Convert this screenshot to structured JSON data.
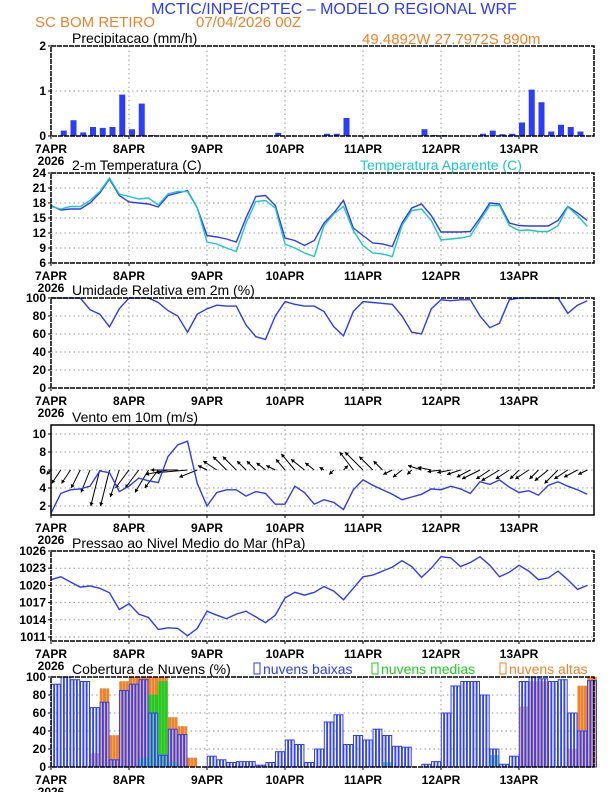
{
  "header": {
    "title": "MCTIC/INPE/CPTEC – MODELO REGIONAL WRF",
    "location": "SC BOM RETIRO",
    "run": "07/04/2026 00Z",
    "coords": "49.4892W 27.7972S 890m",
    "title_color": "#2b3cff",
    "accent_color": "#f0832a"
  },
  "x_axis": {
    "ticks": [
      "7APR",
      "8APR",
      "9APR",
      "10APR",
      "11APR",
      "12APR",
      "13APR"
    ],
    "year": "2026",
    "x_start": "07APR2026 00Z",
    "x_step_hours": 3
  },
  "chart_data": [
    {
      "type": "bar",
      "title": "Precipitacao (mm/h)",
      "ylim": [
        0,
        2
      ],
      "yticks": [
        "0",
        "1",
        "2"
      ],
      "grid": true,
      "series": [
        {
          "color": "#2b3cff",
          "values": [
            0,
            0.12,
            0.35,
            0.08,
            0.2,
            0.18,
            0.2,
            0.92,
            0.15,
            0.72,
            0.02,
            0.01,
            0,
            0,
            0,
            0,
            0,
            0,
            0,
            0,
            0,
            0,
            0,
            0.07,
            0,
            0,
            0,
            0,
            0.05,
            0.05,
            0.4,
            0,
            0,
            0,
            0,
            0,
            0,
            0.01,
            0.15,
            0.02,
            0.02,
            0,
            0.01,
            0.01,
            0.05,
            0.12,
            0.04,
            0.05,
            0.3,
            1.03,
            0.75,
            0.1,
            0.25,
            0.2,
            0.1,
            0.01
          ]
        }
      ]
    },
    {
      "type": "line",
      "title": "2-m Temperatura (C)",
      "ylim": [
        6,
        24
      ],
      "yticks": [
        "6",
        "9",
        "12",
        "15",
        "18",
        "21",
        "24"
      ],
      "grid": true,
      "series": [
        {
          "color": "#2b3cff",
          "values": [
            17.5,
            16.6,
            16.8,
            16.8,
            18.0,
            20.0,
            22.8,
            19.5,
            18.2,
            18.0,
            17.8,
            17.2,
            19.5,
            20.0,
            20.5,
            17.0,
            11.5,
            11.2,
            10.8,
            10.2,
            15.0,
            19.3,
            19.5,
            17.5,
            11.0,
            10.5,
            9.5,
            10.5,
            14.0,
            16.0,
            18.5,
            13.0,
            11.5,
            10.0,
            9.8,
            9.3,
            14.0,
            17.0,
            17.8,
            15.5,
            12.2,
            12.2,
            12.2,
            12.3,
            15.0,
            18.0,
            17.8,
            14.0,
            13.5,
            13.4,
            13.4,
            13.4,
            14.5,
            17.3,
            16.0,
            14.5
          ]
        },
        {
          "name": "Temperatura Aparente (C)",
          "color": "#19c8c8",
          "values": [
            17.3,
            16.8,
            17.3,
            17.3,
            18.5,
            20.3,
            23.0,
            19.8,
            19.3,
            18.8,
            19.0,
            17.6,
            19.8,
            20.3,
            20.3,
            17.0,
            10.2,
            9.8,
            9.0,
            8.3,
            14.0,
            18.3,
            18.5,
            17.0,
            9.8,
            9.0,
            8.0,
            7.3,
            13.5,
            15.8,
            17.3,
            12.5,
            9.5,
            8.0,
            7.8,
            7.3,
            13.5,
            16.5,
            16.8,
            14.5,
            10.6,
            10.8,
            11.0,
            11.4,
            14.5,
            17.5,
            17.5,
            13.5,
            12.5,
            12.6,
            12.3,
            12.3,
            13.5,
            17.2,
            15.5,
            13.3
          ]
        }
      ]
    },
    {
      "type": "line",
      "title": "Umidade Relativa em 2m (%)",
      "ylim": [
        0,
        100
      ],
      "yticks": [
        "0",
        "20",
        "40",
        "60",
        "80",
        "100"
      ],
      "grid": true,
      "series": [
        {
          "color": "#2b3cff",
          "values": [
            100,
            100,
            100,
            100,
            87,
            82,
            68,
            88,
            100,
            100,
            100,
            95,
            86,
            80,
            62,
            82,
            88,
            92,
            91,
            91,
            70,
            57,
            54,
            80,
            96,
            93,
            91,
            91,
            85,
            68,
            58,
            85,
            96,
            95,
            94,
            93,
            80,
            62,
            60,
            88,
            98,
            97,
            98,
            98,
            80,
            67,
            72,
            98,
            100,
            100,
            100,
            100,
            100,
            83,
            92,
            97
          ]
        }
      ]
    },
    {
      "type": "line",
      "title": "Vento em 10m (m/s)",
      "ylim": [
        1,
        11
      ],
      "yticks": [
        "2",
        "4",
        "6",
        "8",
        "10"
      ],
      "grid": true,
      "series": [
        {
          "color": "#2b3cff",
          "values": [
            1.2,
            3.4,
            3.8,
            3.9,
            4.2,
            5.9,
            5.7,
            3.6,
            4.2,
            5.1,
            4.8,
            4.6,
            7.5,
            8.8,
            9.2,
            4.5,
            2.0,
            3.5,
            3.8,
            3.8,
            3.1,
            3.6,
            3.4,
            2.2,
            2.2,
            4.2,
            3.5,
            2.2,
            2.7,
            2.4,
            1.6,
            3.8,
            4.9,
            4.3,
            3.8,
            3.3,
            2.7,
            3.0,
            3.3,
            3.9,
            3.8,
            4.2,
            3.9,
            3.4,
            4.7,
            4.4,
            4.9,
            4.1,
            3.5,
            3.7,
            3.2,
            4.3,
            4.7,
            4.2,
            3.8,
            3.3
          ]
        }
      ],
      "vectors": {
        "baseline": 6,
        "u": [
          -1,
          -2,
          -2,
          -2,
          -2,
          -2,
          -2,
          -2,
          -3,
          -3,
          -3,
          -3,
          -5,
          -6,
          -7,
          -4,
          -2,
          -3,
          -3,
          -3,
          -2,
          -2,
          -2,
          -2,
          -2,
          -3,
          -3,
          -2,
          -1,
          -1,
          1,
          -3,
          -4,
          -3,
          -2,
          -2,
          -2,
          -1,
          -3,
          -3,
          -3,
          -3,
          -3,
          -3,
          -4,
          -3,
          -4,
          -3,
          -2,
          -3,
          -2,
          -3,
          -3,
          -3,
          -3,
          -2
        ],
        "v": [
          -0.5,
          -1.5,
          -1.5,
          -2,
          -2.5,
          -4,
          -4,
          -3,
          -2,
          -2,
          -2.5,
          -2,
          -0.5,
          0,
          -0.3,
          -0.8,
          0.5,
          1,
          1.5,
          1.5,
          1,
          1,
          0.8,
          0.5,
          1.2,
          1.8,
          1.2,
          0.8,
          0.3,
          -0.5,
          0.5,
          2,
          2,
          1.5,
          1,
          -0.5,
          -0.8,
          -0.5,
          0.5,
          0.3,
          -0.2,
          -0.3,
          -0.5,
          -0.8,
          -1,
          -1,
          -1.2,
          -1,
          -1,
          -1,
          -1,
          -1.2,
          -1.5,
          -1,
          -0.8,
          -0.5
        ]
      }
    },
    {
      "type": "line",
      "title": "Pressao ao Nivel Medio do Mar (hPa)",
      "ylim": [
        1010.3,
        1026
      ],
      "yticks": [
        "1011",
        "1014",
        "1017",
        "1020",
        "1023",
        "1026"
      ],
      "grid": true,
      "series": [
        {
          "color": "#2b3cff",
          "values": [
            1021,
            1021.5,
            1020.6,
            1019.7,
            1019.9,
            1019.5,
            1018.7,
            1015.8,
            1016.8,
            1015.0,
            1014.4,
            1012.3,
            1012.6,
            1012.5,
            1011.2,
            1012.5,
            1015.5,
            1014.8,
            1014.2,
            1015.0,
            1015.5,
            1014.5,
            1013.5,
            1014.8,
            1017.8,
            1018.8,
            1018.3,
            1018.8,
            1019.8,
            1019.0,
            1017.5,
            1019.5,
            1021.5,
            1021.8,
            1022.5,
            1023.2,
            1024.3,
            1023.3,
            1021.4,
            1023.0,
            1025.0,
            1024.8,
            1023.3,
            1024.0,
            1025.0,
            1023.5,
            1021.5,
            1022.3,
            1023.5,
            1022.5,
            1021.0,
            1021.3,
            1022.5,
            1021.0,
            1019.3,
            1020.0
          ]
        }
      ]
    },
    {
      "type": "bar",
      "title": "Cobertura de Nuvens (%)",
      "ylim": [
        0,
        100
      ],
      "yticks": [
        "0",
        "20",
        "40",
        "60",
        "80",
        "100"
      ],
      "grid": true,
      "legend": "top",
      "series": [
        {
          "name": "nuvens altas",
          "color": "#f0832a",
          "values": [
            0,
            0,
            0,
            0,
            15,
            87,
            35,
            95,
            100,
            100,
            100,
            100,
            55,
            45,
            10,
            0,
            0,
            0,
            0,
            0,
            0,
            0,
            0,
            0,
            0,
            0,
            0,
            0,
            0,
            0,
            0,
            0,
            0,
            0,
            0,
            0,
            0,
            0,
            0,
            0,
            0,
            0,
            0,
            0,
            0,
            0,
            0,
            0,
            67,
            95,
            95,
            0,
            0,
            20,
            90,
            100
          ]
        },
        {
          "name": "nuvens medias",
          "color": "#22cc22",
          "values": [
            0,
            0,
            0,
            0,
            0,
            0,
            0,
            0,
            0,
            10,
            80,
            95,
            5,
            0,
            0,
            0,
            0,
            0,
            0,
            0,
            0,
            0,
            0,
            0,
            0,
            0,
            0,
            0,
            0,
            0,
            0,
            0,
            0,
            0,
            5,
            0,
            0,
            0,
            0,
            0,
            0,
            0,
            0,
            0,
            0,
            13,
            0,
            0,
            0,
            0,
            0,
            0,
            0,
            0,
            0,
            0
          ]
        },
        {
          "name": "nuvens baixas",
          "color": "#2b3cff",
          "values": [
            92,
            100,
            97,
            95,
            66,
            72,
            8,
            85,
            92,
            97,
            60,
            13,
            42,
            36,
            0,
            0,
            12,
            8,
            5,
            6,
            6,
            2,
            5,
            17,
            30,
            25,
            5,
            20,
            50,
            58,
            25,
            35,
            30,
            42,
            35,
            23,
            22,
            0,
            3,
            6,
            60,
            90,
            95,
            95,
            80,
            20,
            3,
            12,
            95,
            100,
            98,
            95,
            97,
            60,
            40,
            96
          ]
        }
      ]
    }
  ]
}
